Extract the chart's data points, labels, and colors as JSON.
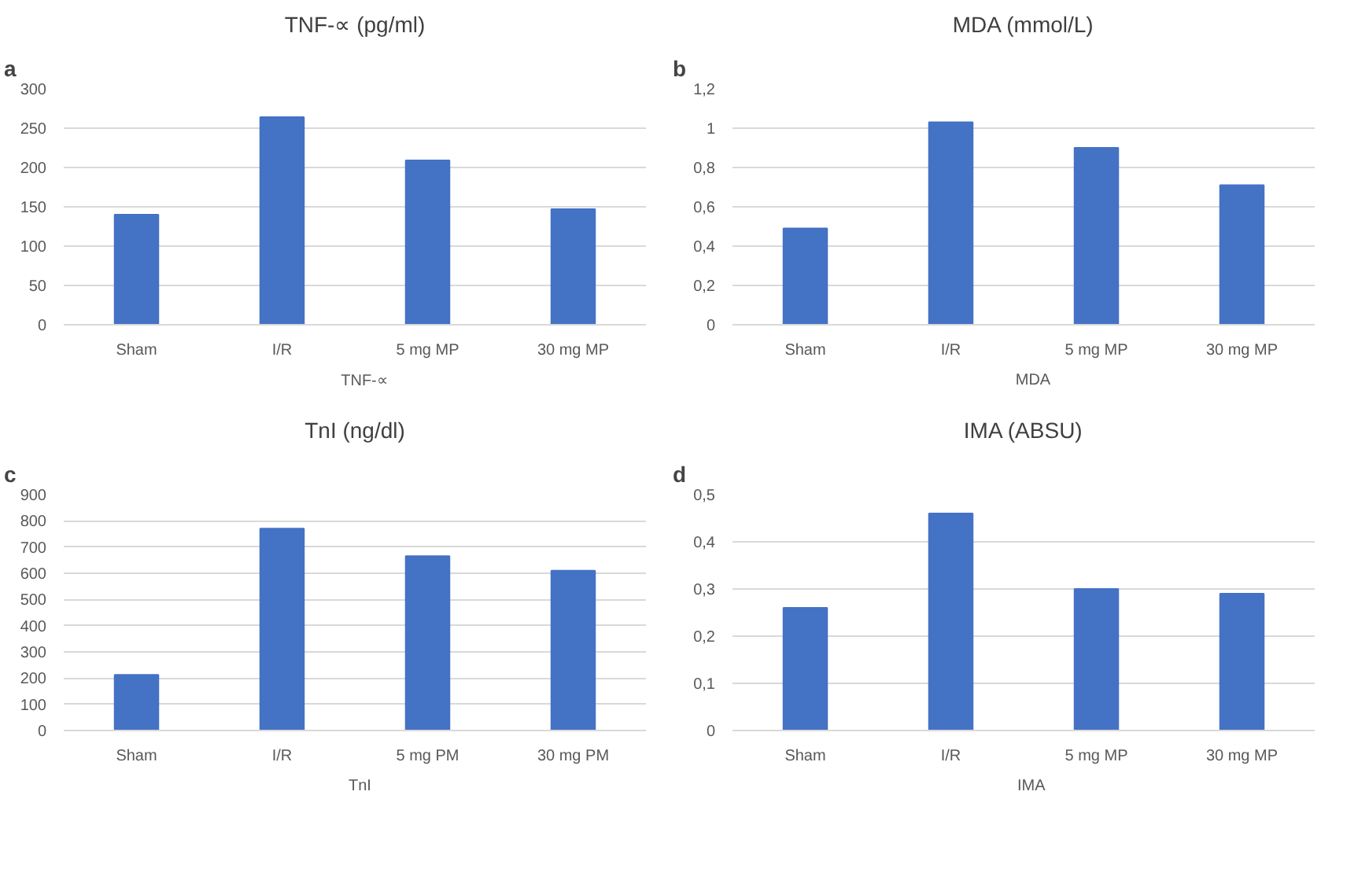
{
  "chart_data": [
    {
      "type": "bar",
      "title": "TNF-∝ (pg/ml)",
      "annotations": [
        "a"
      ],
      "categories": [
        "Sham",
        "I/R",
        "5 mg MP",
        "30 mg MP"
      ],
      "series": [
        {
          "name": "TNF-∝",
          "color": "#4472c4",
          "values": [
            140,
            264,
            209,
            147
          ]
        }
      ],
      "ylim": [
        0,
        300
      ],
      "yticks": [
        0,
        50,
        100,
        150,
        200,
        250,
        300
      ],
      "grid": "y",
      "legend": "bottom"
    },
    {
      "type": "bar",
      "title": "MDA (mmol/L)",
      "annotations": [
        "b"
      ],
      "categories": [
        "Sham",
        "I/R",
        "5 mg MP",
        "30 mg MP"
      ],
      "series": [
        {
          "name": "MDA",
          "color": "#4472c4",
          "values": [
            0.49,
            1.03,
            0.9,
            0.71
          ]
        }
      ],
      "ylim": [
        0,
        1.2
      ],
      "yticks": [
        0,
        {
          "value": 0.2,
          "label": "0,2"
        },
        {
          "value": 0.4,
          "label": "0,4"
        },
        {
          "value": 0.6,
          "label": "0,6"
        },
        {
          "value": 0.8,
          "label": "0,8"
        },
        1,
        {
          "value": 1.2,
          "label": "1,2"
        }
      ],
      "grid": "y",
      "legend": "bottom"
    },
    {
      "type": "bar",
      "title": "TnI (ng/dl)",
      "annotations": [
        "c"
      ],
      "categories": [
        "Sham",
        "I/R",
        "5 mg PM",
        "30 mg PM"
      ],
      "series": [
        {
          "name": "TnI",
          "color": "#4472c4",
          "values": [
            212,
            770,
            665,
            610
          ]
        }
      ],
      "ylim": [
        0,
        900
      ],
      "yticks": [
        0,
        100,
        200,
        300,
        400,
        500,
        600,
        700,
        800,
        900
      ],
      "grid": "y",
      "legend": "bottom"
    },
    {
      "type": "bar",
      "title": "IMA (ABSU)",
      "annotations": [
        "d"
      ],
      "categories": [
        "Sham",
        "I/R",
        "5 mg MP",
        "30 mg MP"
      ],
      "series": [
        {
          "name": "IMA",
          "color": "#4472c4",
          "values": [
            0.26,
            0.46,
            0.3,
            0.29
          ]
        }
      ],
      "ylim": [
        0,
        0.5
      ],
      "yticks": [
        0,
        {
          "value": 0.1,
          "label": "0,1"
        },
        {
          "value": 0.2,
          "label": "0,2"
        },
        {
          "value": 0.3,
          "label": "0,3"
        },
        {
          "value": 0.4,
          "label": "0,4"
        },
        {
          "value": 0.5,
          "label": "0,5"
        }
      ],
      "grid": "y",
      "legend": "bottom"
    }
  ]
}
